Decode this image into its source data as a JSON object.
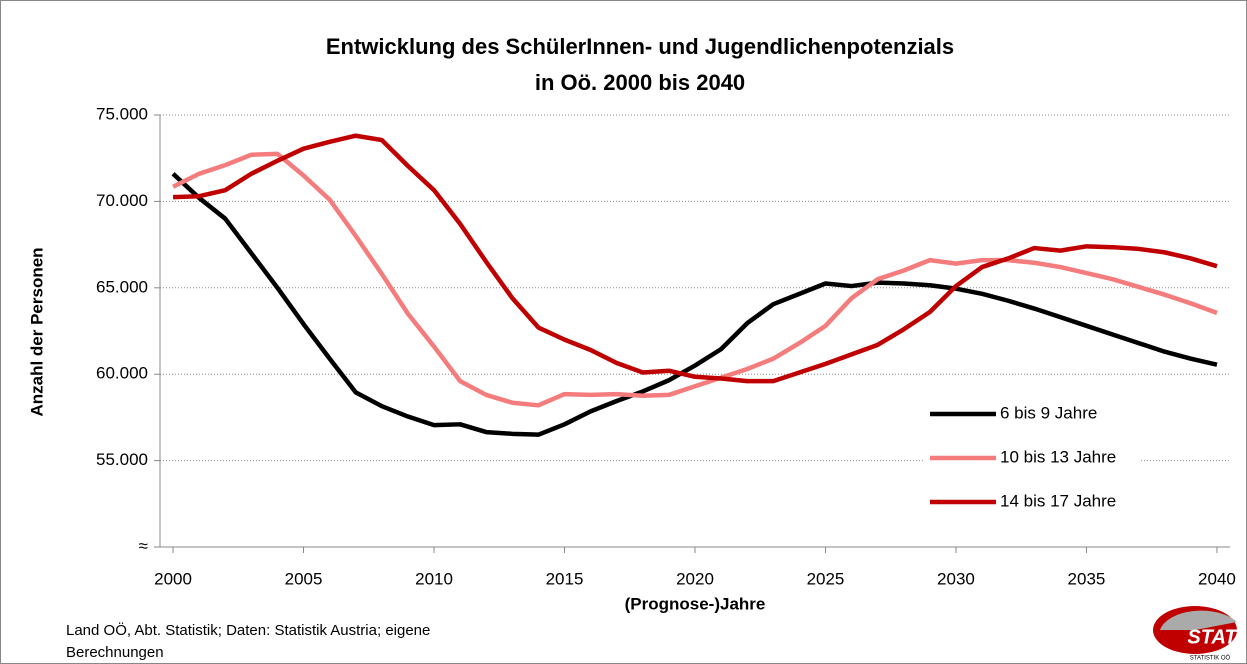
{
  "chart_data": {
    "type": "line",
    "title": [
      "Entwicklung des SchülerInnen- und Jugendlichenpotenzials",
      "in Oö. 2000 bis 2040"
    ],
    "xlabel": "(Prognose-)Jahre",
    "ylabel": "Anzahl der Personen",
    "source": "Land OÖ, Abt. Statistik; Daten: Statistik Austria; eigene Berechnungen",
    "logo": "STAT",
    "logo_sub": "STATISTIK OÖ",
    "x": [
      2000,
      2001,
      2002,
      2003,
      2004,
      2005,
      2006,
      2007,
      2008,
      2009,
      2010,
      2011,
      2012,
      2013,
      2014,
      2015,
      2016,
      2017,
      2018,
      2019,
      2020,
      2021,
      2022,
      2023,
      2024,
      2025,
      2026,
      2027,
      2028,
      2029,
      2030,
      2031,
      2032,
      2033,
      2034,
      2035,
      2036,
      2037,
      2038,
      2039,
      2040
    ],
    "xlim": [
      1999.5,
      2040.5
    ],
    "xticks": [
      2000,
      2005,
      2010,
      2015,
      2020,
      2025,
      2030,
      2035,
      2040
    ],
    "ylim": [
      50000,
      75000
    ],
    "yticks": [
      {
        "value": 50000,
        "label": "≈"
      },
      {
        "value": 55000,
        "label": "55.000"
      },
      {
        "value": 60000,
        "label": "60.000"
      },
      {
        "value": 65000,
        "label": "65.000"
      },
      {
        "value": 70000,
        "label": "70.000"
      },
      {
        "value": 75000,
        "label": "75.000"
      }
    ],
    "grid": true,
    "legend": "right",
    "series": [
      {
        "name": "6 bis 9 Jahre",
        "color": "#000000",
        "values": [
          71600,
          70200,
          69000,
          67000,
          65000,
          62900,
          60900,
          58950,
          58150,
          57550,
          57050,
          57100,
          56650,
          56550,
          56500,
          57100,
          57850,
          58450,
          59000,
          59650,
          60500,
          61450,
          62950,
          64050,
          64650,
          65250,
          65100,
          65300,
          65250,
          65150,
          64950,
          64650,
          64250,
          63800,
          63300,
          62800,
          62300,
          61800,
          61300,
          60900,
          60550
        ]
      },
      {
        "name": "10 bis 13 Jahre",
        "color": "#f47c7c",
        "values": [
          70850,
          71600,
          72100,
          72700,
          72750,
          71500,
          70100,
          68000,
          65800,
          63500,
          61600,
          59600,
          58800,
          58350,
          58200,
          58850,
          58800,
          58850,
          58750,
          58800,
          59300,
          59800,
          60300,
          60900,
          61800,
          62800,
          64400,
          65500,
          66000,
          66600,
          66400,
          66600,
          66600,
          66450,
          66200,
          65850,
          65500,
          65050,
          64600,
          64100,
          63550
        ]
      },
      {
        "name": "14 bis 17 Jahre",
        "color": "#c00000",
        "values": [
          70250,
          70300,
          70650,
          71600,
          72350,
          73050,
          73450,
          73800,
          73550,
          72050,
          70650,
          68700,
          66500,
          64400,
          62700,
          62000,
          61400,
          60650,
          60100,
          60200,
          59850,
          59750,
          59600,
          59600,
          60100,
          60600,
          61150,
          61700,
          62600,
          63600,
          65100,
          66200,
          66700,
          67300,
          67150,
          67400,
          67350,
          67250,
          67050,
          66700,
          66250
        ]
      }
    ]
  }
}
